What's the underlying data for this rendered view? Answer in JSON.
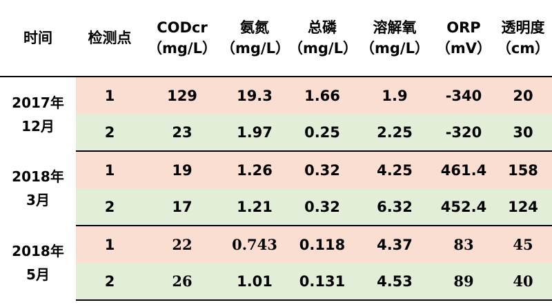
{
  "columns": [
    {
      "line1": "时间",
      "line2": ""
    },
    {
      "line1": "检测点",
      "line2": ""
    },
    {
      "line1": "CODcr",
      "line2": "（mg/L）"
    },
    {
      "line1": "氨氮",
      "line2": "（mg/L）"
    },
    {
      "line1": "总磷",
      "line2": "（mg/L）"
    },
    {
      "line1": "溶解氧",
      "line2": "（mg/L）"
    },
    {
      "line1": "ORP",
      "line2": "（mV）"
    },
    {
      "line1": "透明度",
      "line2": "（cm）"
    }
  ],
  "groups": [
    {
      "period_line1": "2017年",
      "period_line2": "12月",
      "rows": [
        {
          "point": "1",
          "codcr": "129",
          "ammonia": "19.3",
          "tp": "1.66",
          "do": "1.9",
          "orp": "-340",
          "transparency": "20"
        },
        {
          "point": "2",
          "codcr": "23",
          "ammonia": "1.97",
          "tp": "0.25",
          "do": "2.25",
          "orp": "-320",
          "transparency": "30"
        }
      ]
    },
    {
      "period_line1": "2018年",
      "period_line2": "3月",
      "rows": [
        {
          "point": "1",
          "codcr": "19",
          "ammonia": "1.26",
          "tp": "0.32",
          "do": "4.25",
          "orp": "461.4",
          "transparency": "158"
        },
        {
          "point": "2",
          "codcr": "17",
          "ammonia": "1.21",
          "tp": "0.32",
          "do": "6.32",
          "orp": "452.4",
          "transparency": "124"
        }
      ]
    },
    {
      "period_line1": "2018年",
      "period_line2": "5月",
      "rows": [
        {
          "point": "1",
          "codcr": "22",
          "ammonia": "0.743",
          "tp": "0.118",
          "do": "4.37",
          "orp": "83",
          "transparency": "45"
        },
        {
          "point": "2",
          "codcr": "26",
          "ammonia": "1.01",
          "tp": "0.131",
          "do": "4.53",
          "orp": "89",
          "transparency": "40"
        }
      ]
    }
  ],
  "colors": {
    "row_a": "#f9ded1",
    "row_b": "#e2eed8",
    "rule": "#000000"
  }
}
